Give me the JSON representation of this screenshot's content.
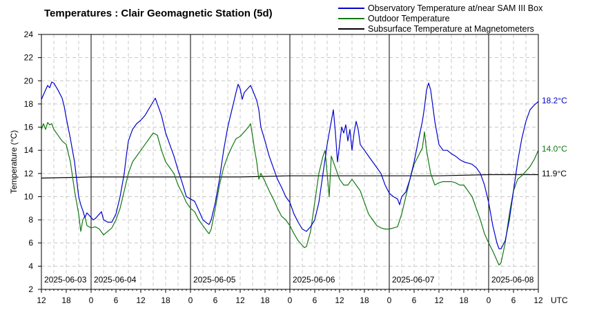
{
  "colors": {
    "observatory": "#0000cc",
    "outdoor": "#117711",
    "subsurface": "#000000",
    "grid": "#c8c8c8"
  },
  "chart_data": {
    "type": "line",
    "title": "Temperatures : Clair Geomagnetic Station (5d)",
    "ylabel": "Temperature (°C)",
    "xunit": "UTC",
    "ylim": [
      2,
      24
    ],
    "yticks": [
      2,
      4,
      6,
      8,
      10,
      12,
      14,
      16,
      18,
      20,
      22,
      24
    ],
    "x_range_hours": [
      0,
      120
    ],
    "x_tick_labels": [
      "12",
      "18",
      "0",
      "6",
      "12",
      "18",
      "0",
      "6",
      "12",
      "18",
      "0",
      "6",
      "12",
      "18",
      "0",
      "6",
      "12",
      "18",
      "0",
      "6",
      "12"
    ],
    "day_labels": [
      {
        "hour": 0,
        "text": "2025-06-03"
      },
      {
        "hour": 12,
        "text": "2025-06-04"
      },
      {
        "hour": 36,
        "text": "2025-06-05"
      },
      {
        "hour": 60,
        "text": "2025-06-06"
      },
      {
        "hour": 84,
        "text": "2025-06-07"
      },
      {
        "hour": 108,
        "text": "2025-06-08"
      }
    ],
    "midnights_hours": [
      12,
      36,
      60,
      84,
      108
    ],
    "grid": true,
    "legend_position": "top-right",
    "series": [
      {
        "name": "Observatory Temperature at/near SAM III Box",
        "end_label": "18.2°C",
        "points": [
          [
            0,
            18.4
          ],
          [
            1,
            19.2
          ],
          [
            1.5,
            19.6
          ],
          [
            2,
            19.4
          ],
          [
            2.5,
            19.9
          ],
          [
            3,
            19.8
          ],
          [
            4,
            19.2
          ],
          [
            5,
            18.5
          ],
          [
            5.5,
            17.8
          ],
          [
            6,
            16.8
          ],
          [
            7,
            15.0
          ],
          [
            8,
            13.0
          ],
          [
            8.5,
            11.5
          ],
          [
            9,
            10.0
          ],
          [
            9.5,
            9.3
          ],
          [
            10,
            8.8
          ],
          [
            10.5,
            8.2
          ],
          [
            11,
            8.6
          ],
          [
            12,
            8.2
          ],
          [
            12.5,
            8.0
          ],
          [
            13,
            8.1
          ],
          [
            14,
            8.5
          ],
          [
            14.5,
            8.7
          ],
          [
            15,
            8.0
          ],
          [
            16,
            7.8
          ],
          [
            17,
            7.8
          ],
          [
            18,
            8.5
          ],
          [
            19,
            10.0
          ],
          [
            20,
            12.0
          ],
          [
            20.5,
            13.5
          ],
          [
            21,
            14.8
          ],
          [
            22,
            15.8
          ],
          [
            23,
            16.3
          ],
          [
            24,
            16.6
          ],
          [
            25,
            17.0
          ],
          [
            26,
            17.6
          ],
          [
            27,
            18.2
          ],
          [
            27.5,
            18.5
          ],
          [
            28,
            18.0
          ],
          [
            29,
            17.0
          ],
          [
            30,
            15.5
          ],
          [
            31,
            14.5
          ],
          [
            32,
            13.5
          ],
          [
            33,
            12.3
          ],
          [
            34,
            11.2
          ],
          [
            35,
            10.0
          ],
          [
            36,
            9.8
          ],
          [
            37,
            9.6
          ],
          [
            38,
            8.8
          ],
          [
            39,
            8.0
          ],
          [
            40,
            7.7
          ],
          [
            40.5,
            7.6
          ],
          [
            41,
            8.0
          ],
          [
            42,
            9.5
          ],
          [
            43,
            11.5
          ],
          [
            44,
            14.0
          ],
          [
            45,
            16.0
          ],
          [
            46,
            17.5
          ],
          [
            47,
            19.0
          ],
          [
            47.5,
            19.7
          ],
          [
            48,
            19.3
          ],
          [
            48.5,
            18.4
          ],
          [
            49,
            19.0
          ],
          [
            50,
            19.4
          ],
          [
            50.5,
            19.6
          ],
          [
            51,
            19.2
          ],
          [
            52,
            18.3
          ],
          [
            52.5,
            17.5
          ],
          [
            53,
            16.0
          ],
          [
            54,
            14.8
          ],
          [
            55,
            13.5
          ],
          [
            56,
            12.5
          ],
          [
            57,
            11.5
          ],
          [
            58,
            10.8
          ],
          [
            59,
            10.0
          ],
          [
            60,
            9.5
          ],
          [
            61,
            8.5
          ],
          [
            62,
            7.8
          ],
          [
            63,
            7.2
          ],
          [
            64,
            7.0
          ],
          [
            65,
            7.4
          ],
          [
            66,
            8.0
          ],
          [
            67,
            9.5
          ],
          [
            68,
            12.0
          ],
          [
            69,
            14.5
          ],
          [
            70,
            16.5
          ],
          [
            70.5,
            17.5
          ],
          [
            71,
            15.5
          ],
          [
            71.5,
            13.0
          ],
          [
            72,
            14.5
          ],
          [
            72.5,
            16.0
          ],
          [
            73,
            15.5
          ],
          [
            73.5,
            16.2
          ],
          [
            74,
            14.8
          ],
          [
            74.5,
            15.8
          ],
          [
            75,
            14.0
          ],
          [
            75.5,
            15.5
          ],
          [
            76,
            16.5
          ],
          [
            76.5,
            15.8
          ],
          [
            77,
            14.5
          ],
          [
            78,
            14.0
          ],
          [
            79,
            13.5
          ],
          [
            80,
            13.0
          ],
          [
            81,
            12.5
          ],
          [
            82,
            12.0
          ],
          [
            83,
            11.0
          ],
          [
            84,
            10.3
          ],
          [
            85,
            10.0
          ],
          [
            86,
            9.8
          ],
          [
            86.5,
            9.3
          ],
          [
            87,
            10.0
          ],
          [
            88,
            10.4
          ],
          [
            89,
            11.5
          ],
          [
            90,
            13.0
          ],
          [
            91,
            14.8
          ],
          [
            92,
            16.5
          ],
          [
            92.5,
            17.7
          ],
          [
            93,
            19.2
          ],
          [
            93.5,
            19.8
          ],
          [
            94,
            19.2
          ],
          [
            95,
            16.5
          ],
          [
            96,
            14.5
          ],
          [
            97,
            14.0
          ],
          [
            98,
            14.0
          ],
          [
            99,
            13.7
          ],
          [
            100,
            13.5
          ],
          [
            101,
            13.2
          ],
          [
            102,
            13.0
          ],
          [
            103,
            12.9
          ],
          [
            104,
            12.8
          ],
          [
            105,
            12.5
          ],
          [
            106,
            12.0
          ],
          [
            107,
            11.0
          ],
          [
            108,
            9.5
          ],
          [
            109,
            7.5
          ],
          [
            110,
            6.0
          ],
          [
            110.5,
            5.5
          ],
          [
            111,
            5.5
          ],
          [
            112,
            6.2
          ],
          [
            113,
            8.0
          ],
          [
            114,
            10.5
          ],
          [
            115,
            13.0
          ],
          [
            116,
            15.0
          ],
          [
            117,
            16.5
          ],
          [
            118,
            17.5
          ],
          [
            119,
            17.9
          ],
          [
            120,
            18.2
          ]
        ]
      },
      {
        "name": "Outdoor Temperature",
        "end_label": "14.0°C",
        "points": [
          [
            0,
            15.8
          ],
          [
            0.5,
            16.3
          ],
          [
            1,
            15.8
          ],
          [
            1.5,
            16.4
          ],
          [
            2,
            16.2
          ],
          [
            2.5,
            16.3
          ],
          [
            3,
            15.8
          ],
          [
            4,
            15.3
          ],
          [
            5,
            14.8
          ],
          [
            6,
            14.5
          ],
          [
            7,
            13.0
          ],
          [
            8,
            10.5
          ],
          [
            9,
            8.5
          ],
          [
            9.5,
            7.0
          ],
          [
            10,
            8.0
          ],
          [
            10.5,
            8.3
          ],
          [
            11,
            7.5
          ],
          [
            12,
            7.3
          ],
          [
            13,
            7.4
          ],
          [
            14,
            7.2
          ],
          [
            15,
            6.7
          ],
          [
            16,
            7.0
          ],
          [
            17,
            7.3
          ],
          [
            18,
            8.0
          ],
          [
            19,
            9.0
          ],
          [
            20,
            10.5
          ],
          [
            21,
            12.0
          ],
          [
            22,
            13.0
          ],
          [
            23,
            13.5
          ],
          [
            24,
            14.0
          ],
          [
            25,
            14.5
          ],
          [
            26,
            15.0
          ],
          [
            27,
            15.5
          ],
          [
            28,
            15.3
          ],
          [
            29,
            14.0
          ],
          [
            30,
            13.0
          ],
          [
            31,
            12.5
          ],
          [
            32,
            12.0
          ],
          [
            33,
            11.0
          ],
          [
            34,
            10.3
          ],
          [
            35,
            9.5
          ],
          [
            36,
            9.0
          ],
          [
            37,
            8.7
          ],
          [
            38,
            8.0
          ],
          [
            39,
            7.5
          ],
          [
            40,
            7.0
          ],
          [
            40.5,
            6.8
          ],
          [
            41,
            7.2
          ],
          [
            42,
            9.0
          ],
          [
            43,
            11.0
          ],
          [
            44,
            12.5
          ],
          [
            45,
            13.5
          ],
          [
            46,
            14.3
          ],
          [
            47,
            15.0
          ],
          [
            48,
            15.2
          ],
          [
            49,
            15.6
          ],
          [
            50,
            16.0
          ],
          [
            50.5,
            16.3
          ],
          [
            51,
            15.2
          ],
          [
            51.5,
            14.0
          ],
          [
            52,
            13.0
          ],
          [
            52.5,
            11.5
          ],
          [
            53,
            12.0
          ],
          [
            54,
            11.3
          ],
          [
            55,
            10.5
          ],
          [
            56,
            9.8
          ],
          [
            57,
            9.0
          ],
          [
            58,
            8.3
          ],
          [
            59,
            8.0
          ],
          [
            60,
            7.5
          ],
          [
            61,
            6.8
          ],
          [
            62,
            6.2
          ],
          [
            63,
            5.8
          ],
          [
            63.5,
            5.6
          ],
          [
            64,
            5.7
          ],
          [
            65,
            7.0
          ],
          [
            66,
            9.5
          ],
          [
            67,
            12.0
          ],
          [
            68,
            13.5
          ],
          [
            68.5,
            14.0
          ],
          [
            69,
            12.0
          ],
          [
            69.5,
            10.0
          ],
          [
            70,
            13.5
          ],
          [
            71,
            12.5
          ],
          [
            71.5,
            12.0
          ],
          [
            72,
            11.5
          ],
          [
            73,
            11.0
          ],
          [
            74,
            11.0
          ],
          [
            75,
            11.5
          ],
          [
            76,
            11.0
          ],
          [
            77,
            10.5
          ],
          [
            78,
            9.5
          ],
          [
            79,
            8.5
          ],
          [
            80,
            8.0
          ],
          [
            81,
            7.5
          ],
          [
            82,
            7.3
          ],
          [
            83,
            7.2
          ],
          [
            84,
            7.2
          ],
          [
            85,
            7.3
          ],
          [
            86,
            7.4
          ],
          [
            87,
            8.5
          ],
          [
            88,
            10.0
          ],
          [
            89,
            11.5
          ],
          [
            90,
            12.8
          ],
          [
            91,
            13.5
          ],
          [
            92,
            14.2
          ],
          [
            92.5,
            15.6
          ],
          [
            93,
            14.0
          ],
          [
            94,
            12.0
          ],
          [
            95,
            11.0
          ],
          [
            96,
            11.2
          ],
          [
            97,
            11.3
          ],
          [
            98,
            11.3
          ],
          [
            99,
            11.3
          ],
          [
            100,
            11.2
          ],
          [
            101,
            11.0
          ],
          [
            102,
            11.0
          ],
          [
            103,
            10.5
          ],
          [
            104,
            10.0
          ],
          [
            105,
            9.0
          ],
          [
            106,
            8.0
          ],
          [
            107,
            6.8
          ],
          [
            108,
            6.0
          ],
          [
            109,
            5.3
          ],
          [
            110,
            4.5
          ],
          [
            110.5,
            4.1
          ],
          [
            111,
            4.3
          ],
          [
            112,
            6.0
          ],
          [
            113,
            8.5
          ],
          [
            114,
            10.5
          ],
          [
            115,
            11.5
          ],
          [
            116,
            11.8
          ],
          [
            117,
            12.2
          ],
          [
            118,
            12.6
          ],
          [
            119,
            13.2
          ],
          [
            120,
            14.0
          ]
        ]
      },
      {
        "name": "Subsurface Temperature at Magnetometers",
        "end_label": "11.9°C",
        "points": [
          [
            0,
            11.6
          ],
          [
            12,
            11.7
          ],
          [
            24,
            11.7
          ],
          [
            36,
            11.7
          ],
          [
            48,
            11.7
          ],
          [
            60,
            11.8
          ],
          [
            72,
            11.8
          ],
          [
            84,
            11.8
          ],
          [
            96,
            11.8
          ],
          [
            108,
            11.9
          ],
          [
            120,
            11.9
          ]
        ]
      }
    ]
  }
}
